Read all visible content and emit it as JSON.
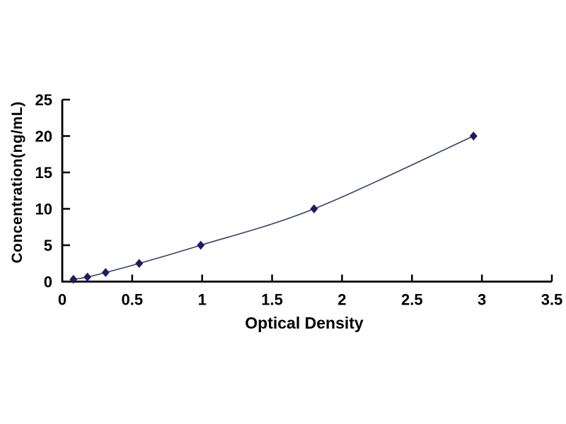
{
  "chart_data": {
    "type": "line",
    "title": "",
    "xlabel": "Optical Density",
    "ylabel": "Concentration(ng/mL)",
    "x": [
      0.08,
      0.18,
      0.31,
      0.55,
      0.99,
      1.8,
      2.94
    ],
    "y": [
      0.312,
      0.625,
      1.25,
      2.5,
      5,
      10,
      20
    ],
    "xlim": [
      0,
      3.5
    ],
    "ylim": [
      0,
      25
    ],
    "x_ticks": [
      0,
      0.5,
      1,
      1.5,
      2,
      2.5,
      3,
      3.5
    ],
    "x_tick_labels": [
      "0",
      "0.5",
      "1",
      "1.5",
      "2",
      "2.5",
      "3",
      "3.5"
    ],
    "y_ticks": [
      0,
      5,
      10,
      15,
      20,
      25
    ],
    "y_tick_labels": [
      "0",
      "5",
      "10",
      "15",
      "20",
      "25"
    ],
    "grid": false,
    "legend_position": "none",
    "marker": "diamond",
    "colors": {
      "line": "#3a4068",
      "marker": "#1b1f5e",
      "axis": "#000000",
      "text": "#000000",
      "background": "#ffffff"
    }
  }
}
